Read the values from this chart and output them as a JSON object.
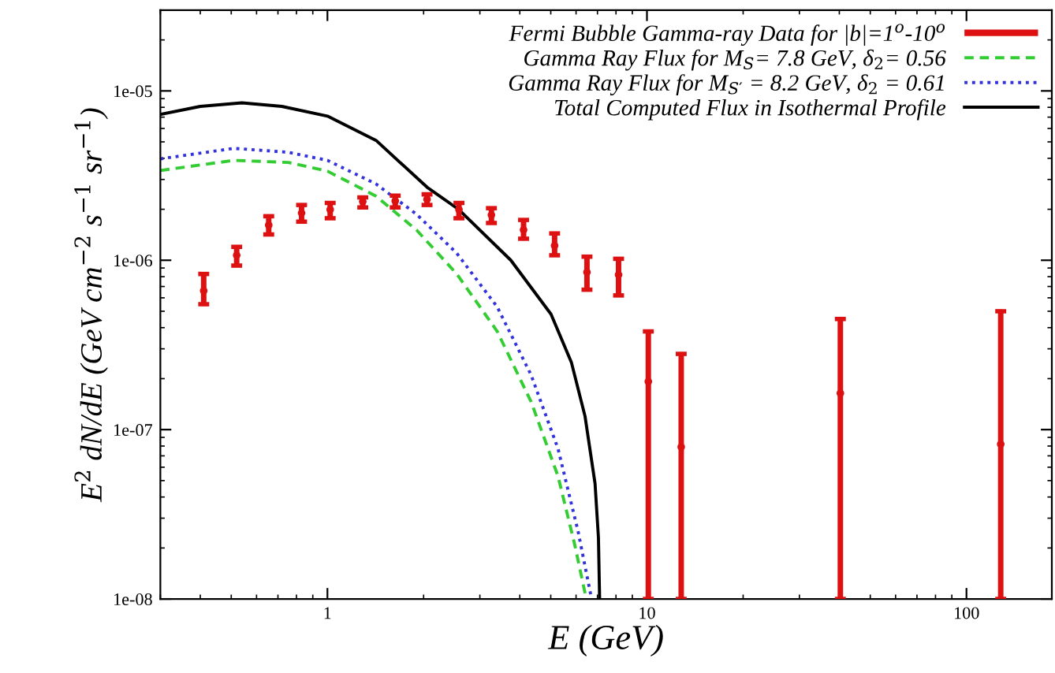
{
  "chart_data": {
    "type": "line",
    "xlabel": "E (GeV)",
    "ylabel": "E$^{2}$ dN/dE (GeV cm$^{−2}$ s$^{−1}$ sr$^{−1}$)",
    "log": "xy",
    "xlim": [
      0.3,
      185
    ],
    "ylim": [
      1e-08,
      3e-05
    ],
    "xticks": [
      1,
      10,
      100
    ],
    "yticks": [
      {
        "value": 1e-08,
        "label": "1e-08"
      },
      {
        "value": 1e-07,
        "label": "1e-07"
      },
      {
        "value": 1e-06,
        "label": "1e-06"
      },
      {
        "value": 1e-05,
        "label": "1e-05"
      }
    ],
    "grid": false,
    "legend": "top right",
    "series": [
      {
        "name": "Fermi Bubble Gamma-ray Data for |b|=1$^{o}$-10$^{o}$",
        "type": "scatter",
        "marker": "circle",
        "color": "#dd1111",
        "x": [
          0.41,
          0.52,
          0.655,
          0.83,
          1.02,
          1.29,
          1.63,
          2.05,
          2.58,
          3.26,
          4.11,
          5.14,
          6.49,
          8.15,
          10.1,
          12.8,
          40.3,
          128
        ],
        "values": [
          6.6e-07,
          1.07e-06,
          1.61e-06,
          1.9e-06,
          1.99e-06,
          2.22e-06,
          2.24e-06,
          2.29e-06,
          1.99e-06,
          1.85e-06,
          1.51e-06,
          1.22e-06,
          8.5e-07,
          8.2e-07,
          1.92e-07,
          7.9e-08,
          1.64e-07,
          8.2e-08
        ],
        "errors": [
          [
            5.5e-07,
            8.3e-07
          ],
          [
            9.3e-07,
            1.2e-06
          ],
          [
            1.42e-06,
            1.82e-06
          ],
          [
            1.69e-06,
            2.12e-06
          ],
          [
            1.77e-06,
            2.18e-06
          ],
          [
            2.05e-06,
            2.35e-06
          ],
          [
            2.05e-06,
            2.41e-06
          ],
          [
            2.12e-06,
            2.45e-06
          ],
          [
            1.77e-06,
            2.18e-06
          ],
          [
            1.66e-06,
            2.03e-06
          ],
          [
            1.34e-06,
            1.73e-06
          ],
          [
            1.07e-06,
            1.44e-06
          ],
          [
            6.7e-07,
            1.05e-06
          ],
          [
            6.2e-07,
            1.02e-06
          ],
          [
            1e-08,
            3.8e-07
          ],
          [
            1e-08,
            2.8e-07
          ],
          [
            1e-08,
            4.5e-07
          ],
          [
            1e-08,
            5e-07
          ]
        ]
      },
      {
        "name": "Gamma Ray Flux for M$_{S}$= 7.8 GeV, δ$_{2}$= 0.56",
        "line_style": "dashed",
        "color": "#33cc33",
        "x": [
          0.3,
          0.51,
          0.755,
          1,
          1.42,
          1.9,
          2.54,
          3.4,
          4.34,
          5.27,
          5.94,
          6.46
        ],
        "values": [
          3.39e-06,
          3.89e-06,
          3.78e-06,
          3.36e-06,
          2.39e-06,
          1.51e-06,
          8.3e-07,
          3.8e-07,
          1.46e-07,
          5.3e-08,
          2.1e-08,
          1e-08
        ]
      },
      {
        "name": "Gamma Ray Flux for M$_{S′}$ = 8.2 GeV, δ$_{2}$ = 0.61",
        "line_style": "dotted",
        "color": "#3333dd",
        "x": [
          0.3,
          0.51,
          0.755,
          1,
          1.42,
          1.9,
          2.54,
          3.4,
          4.34,
          5.27,
          6.09,
          6.71
        ],
        "values": [
          3.97e-06,
          4.58e-06,
          4.34e-06,
          3.89e-06,
          2.82e-06,
          1.87e-06,
          1.1e-06,
          5.3e-07,
          2.1e-07,
          7.7e-08,
          2.5e-08,
          1e-08
        ]
      },
      {
        "name": "Total Computed Flux in Isothermal Profile",
        "line_style": "solid",
        "color": "#000000",
        "x": [
          0.3,
          0.4,
          0.54,
          0.72,
          1,
          1.42,
          2.05,
          2.58,
          3.75,
          5.01,
          5.8,
          6.4,
          6.88,
          7.05,
          7.11
        ],
        "values": [
          7.26e-06,
          8.1e-06,
          8.5e-06,
          8.1e-06,
          7.1e-06,
          5.1e-06,
          2.7e-06,
          1.99e-06,
          1e-06,
          4.8e-07,
          2.5e-07,
          1.2e-07,
          4.8e-08,
          2.3e-08,
          1e-08
        ]
      }
    ]
  }
}
